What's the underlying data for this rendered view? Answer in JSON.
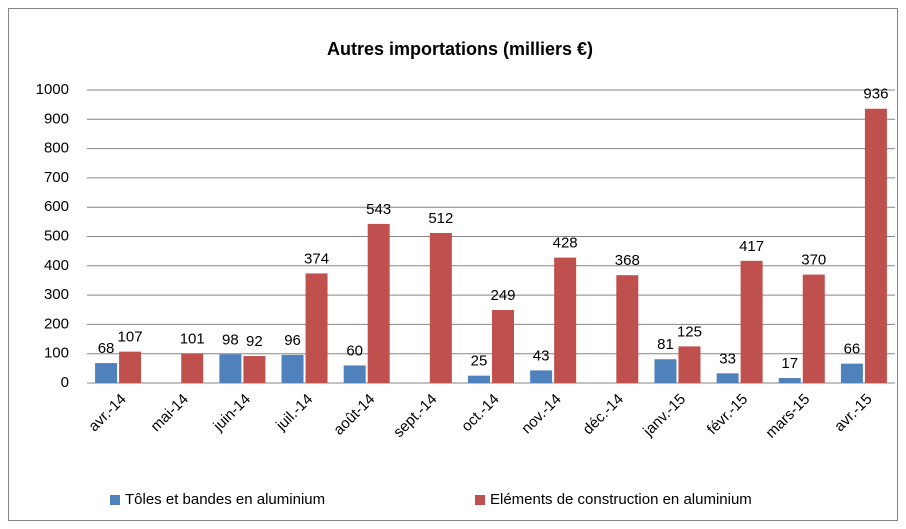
{
  "chart_data": {
    "type": "bar",
    "title": "Autres importations (milliers €)",
    "categories": [
      "avr.-14",
      "mai-14",
      "juin-14",
      "juil.-14",
      "août-14",
      "sept.-14",
      "oct.-14",
      "nov.-14",
      "déc.-14",
      "janv.-15",
      "févr.-15",
      "mars-15",
      "avr.-15"
    ],
    "series": [
      {
        "name": "Tôles et bandes en aluminium",
        "color": "#4f81bd",
        "values": [
          68,
          null,
          98,
          96,
          60,
          null,
          25,
          43,
          null,
          81,
          33,
          17,
          66
        ]
      },
      {
        "name": "Eléments de construction en aluminium",
        "color": "#c0504d",
        "values": [
          107,
          101,
          92,
          374,
          543,
          512,
          249,
          428,
          368,
          125,
          417,
          370,
          936
        ]
      }
    ],
    "ylim": [
      0,
      1000
    ],
    "yticks": [
      0,
      100,
      200,
      300,
      400,
      500,
      600,
      700,
      800,
      900,
      1000
    ],
    "grid": true,
    "legend": "bottom"
  }
}
